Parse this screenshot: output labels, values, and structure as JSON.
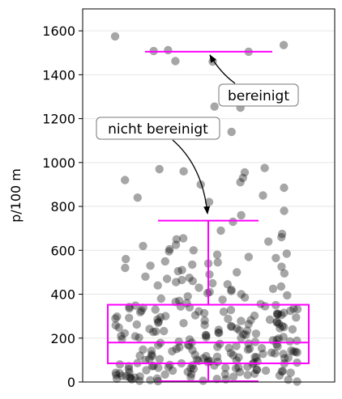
{
  "chart_data": {
    "type": "box",
    "ylabel": "p/100 m",
    "ylim": [
      0,
      1700
    ],
    "yticks": [
      0,
      200,
      400,
      600,
      800,
      1000,
      1200,
      1400,
      1600
    ],
    "grid": "horizontal",
    "box": {
      "q1": 85,
      "median": 180,
      "q3": 352,
      "whisker_low": 0,
      "whisker_high": 735,
      "color": "#ff00ff"
    },
    "line_1500": {
      "value": 1505,
      "color": "#ff00ff"
    },
    "annotations": [
      {
        "text": "bereinigt",
        "target": 1505
      },
      {
        "text": "nicht bereinigt",
        "target": 760
      }
    ],
    "points_color": "#000000",
    "points_opacity": 0.35,
    "points": [
      1575,
      1535,
      1512,
      1508,
      1505,
      1460,
      1462,
      1330,
      1295,
      1255,
      1250,
      1140,
      975,
      970,
      960,
      955,
      930,
      920,
      910,
      900,
      885,
      850,
      840,
      820,
      780,
      760,
      730,
      690,
      675,
      660,
      655,
      650,
      640,
      625,
      620,
      605,
      600,
      595,
      585,
      580,
      570,
      565,
      560,
      550,
      545,
      540,
      535,
      530,
      525,
      520,
      510,
      505,
      500,
      495,
      490,
      480,
      475,
      470,
      465,
      460,
      455,
      450,
      445,
      440,
      435,
      430,
      425,
      420,
      415,
      410,
      405,
      400,
      395,
      390,
      385,
      380,
      375,
      370,
      365,
      360,
      355,
      350,
      348,
      345,
      342,
      340,
      338,
      335,
      332,
      330,
      328,
      325,
      322,
      320,
      318,
      315,
      312,
      310,
      308,
      305,
      302,
      300,
      298,
      295,
      292,
      290,
      288,
      285,
      282,
      280,
      278,
      275,
      272,
      270,
      268,
      265,
      262,
      260,
      258,
      255,
      252,
      250,
      248,
      245,
      242,
      240,
      238,
      235,
      232,
      230,
      228,
      225,
      222,
      220,
      218,
      215,
      212,
      210,
      208,
      205,
      202,
      200,
      198,
      195,
      192,
      190,
      188,
      185,
      182,
      180,
      178,
      175,
      172,
      170,
      168,
      165,
      162,
      160,
      158,
      155,
      152,
      150,
      148,
      145,
      142,
      140,
      138,
      135,
      132,
      130,
      128,
      125,
      122,
      120,
      118,
      115,
      112,
      110,
      108,
      105,
      102,
      100,
      98,
      95,
      92,
      90,
      88,
      85,
      82,
      80,
      78,
      75,
      72,
      70,
      68,
      65,
      62,
      60,
      58,
      55,
      52,
      50,
      48,
      45,
      42,
      40,
      38,
      35,
      32,
      30,
      28,
      25,
      22,
      20,
      18,
      15,
      12,
      10,
      8,
      5,
      118,
      112,
      104,
      96,
      88,
      76,
      66,
      56,
      46,
      36,
      26,
      16,
      128,
      138,
      148,
      108,
      98,
      86,
      74,
      64,
      54,
      44,
      34,
      24,
      14,
      6,
      2,
      72,
      62,
      52,
      42,
      32,
      22,
      12,
      4,
      84,
      94,
      114,
      124,
      134,
      144,
      154,
      164,
      174,
      184,
      194,
      204,
      214,
      224,
      234,
      244,
      254,
      264,
      274,
      284,
      294,
      304,
      314,
      324,
      334,
      344
    ]
  }
}
